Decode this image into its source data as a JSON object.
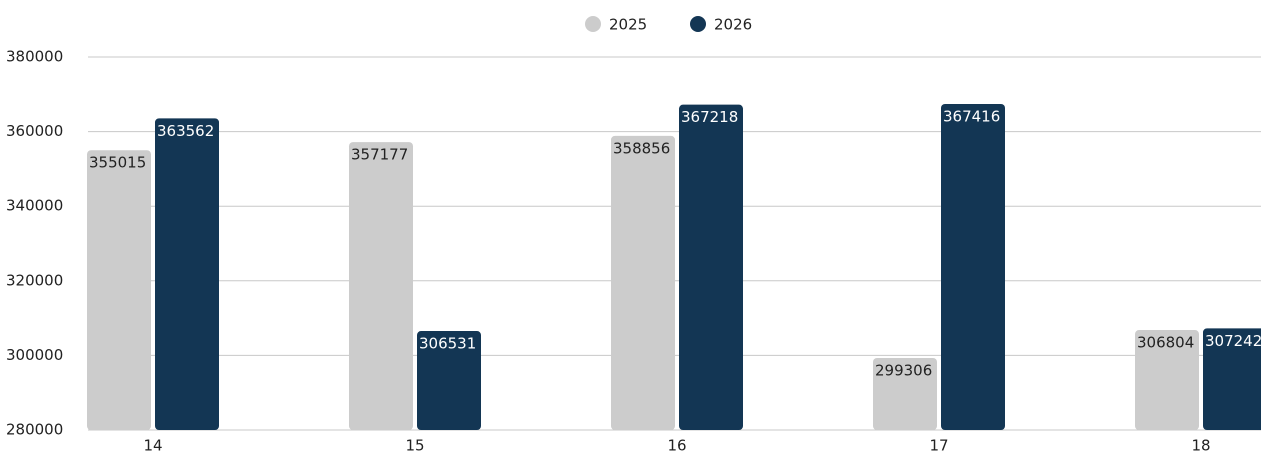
{
  "chart_data": {
    "type": "bar",
    "categories": [
      "14",
      "15",
      "16",
      "17",
      "18"
    ],
    "series": [
      {
        "name": "2025",
        "color": "#cccccc",
        "values": [
          355015,
          357177,
          358856,
          299306,
          306804
        ]
      },
      {
        "name": "2026",
        "color": "#133654",
        "values": [
          363562,
          306531,
          367218,
          367416,
          307242
        ]
      }
    ],
    "ylim": [
      280000,
      380000
    ],
    "yticks": [
      280000,
      300000,
      320000,
      340000,
      360000,
      380000
    ],
    "grid": true,
    "legend": "top"
  }
}
